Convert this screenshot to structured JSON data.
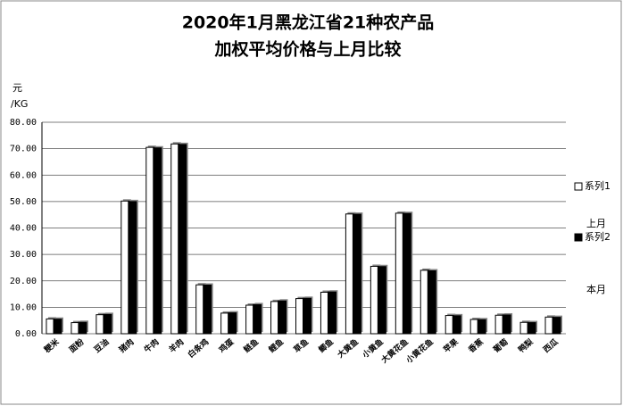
{
  "chart_data": {
    "type": "bar",
    "title": [
      "2020年1月黑龙江省21种农产品",
      "加权平均价格与上月比较"
    ],
    "y_label": [
      "元",
      "/KG"
    ],
    "annotations": [
      "上月",
      "本月"
    ],
    "categories": [
      "粳米",
      "面粉",
      "豆油",
      "猪肉",
      "牛肉",
      "羊肉",
      "白条鸡",
      "鸡蛋",
      "鲢鱼",
      "鲤鱼",
      "草鱼",
      "鲫鱼",
      "大黄鱼",
      "小黄鱼",
      "大黄花鱼",
      "小黄花鱼",
      "苹果",
      "香蕉",
      "葡萄",
      "鸭梨",
      "西瓜"
    ],
    "series": [
      {
        "name": "系列1",
        "color": "#ffffff",
        "values": [
          5.6,
          4.2,
          7.2,
          50.2,
          70.5,
          71.8,
          18.5,
          7.8,
          10.8,
          12.2,
          13.3,
          15.7,
          45.3,
          25.5,
          45.6,
          24.0,
          6.9,
          5.4,
          7.0,
          4.3,
          6.3
        ]
      },
      {
        "name": "系列2",
        "color": "#000000",
        "values": [
          5.5,
          4.3,
          7.3,
          50.0,
          70.3,
          71.6,
          18.4,
          7.9,
          11.0,
          12.4,
          13.4,
          15.8,
          45.2,
          25.4,
          45.5,
          23.8,
          6.8,
          5.3,
          7.1,
          4.2,
          6.2
        ]
      }
    ],
    "ylim": [
      0,
      80
    ],
    "yticks": [
      {
        "value": 0,
        "label": "0.00"
      },
      {
        "value": 10,
        "label": "10.00"
      },
      {
        "value": 20,
        "label": "20.00"
      },
      {
        "value": 30,
        "label": "30.00"
      },
      {
        "value": 40,
        "label": "40.00"
      },
      {
        "value": 50,
        "label": "50.00"
      },
      {
        "value": 60,
        "label": "60.00"
      },
      {
        "value": 70,
        "label": "70.00"
      },
      {
        "value": 80,
        "label": "80.00"
      }
    ],
    "grid": true
  }
}
